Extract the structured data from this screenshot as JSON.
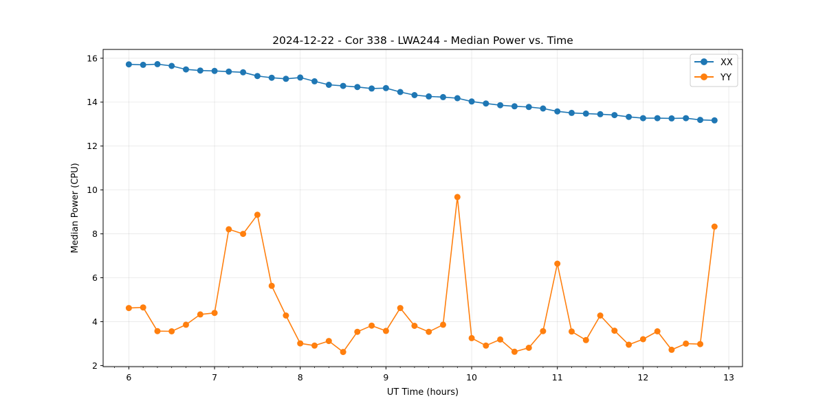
{
  "chart_data": {
    "type": "line",
    "title": "2024-12-22 - Cor 338 - LWA244 - Median Power vs. Time",
    "xlabel": "UT Time (hours)",
    "ylabel": "Median Power (CPU)",
    "xlim": [
      5.7,
      13.16
    ],
    "ylim": [
      1.95,
      16.4
    ],
    "xticks": [
      6,
      7,
      8,
      9,
      10,
      11,
      12,
      13
    ],
    "yticks": [
      2,
      4,
      6,
      8,
      10,
      12,
      14,
      16
    ],
    "grid": true,
    "legend_position": "top-right",
    "x": [
      6.0,
      6.1667,
      6.3333,
      6.5,
      6.6667,
      6.8333,
      7.0,
      7.1667,
      7.3333,
      7.5,
      7.6667,
      7.8333,
      8.0,
      8.1667,
      8.3333,
      8.5,
      8.6667,
      8.8333,
      9.0,
      9.1667,
      9.3333,
      9.5,
      9.6667,
      9.8333,
      10.0,
      10.1667,
      10.3333,
      10.5,
      10.6667,
      10.8333,
      11.0,
      11.1667,
      11.3333,
      11.5,
      11.6667,
      11.8333,
      12.0,
      12.1667,
      12.3333,
      12.5,
      12.6667,
      12.8333
    ],
    "series": [
      {
        "name": "XX",
        "color": "#1f77b4",
        "values": [
          15.72,
          15.7,
          15.73,
          15.65,
          15.49,
          15.44,
          15.42,
          15.39,
          15.36,
          15.19,
          15.11,
          15.06,
          15.12,
          14.95,
          14.79,
          14.74,
          14.69,
          14.62,
          14.64,
          14.46,
          14.32,
          14.26,
          14.23,
          14.18,
          14.03,
          13.94,
          13.86,
          13.81,
          13.78,
          13.71,
          13.58,
          13.51,
          13.48,
          13.45,
          13.41,
          13.33,
          13.27,
          13.27,
          13.26,
          13.27,
          13.19,
          13.17
        ]
      },
      {
        "name": "YY",
        "color": "#ff7f0e",
        "values": [
          4.62,
          4.65,
          3.57,
          3.56,
          3.86,
          4.33,
          4.4,
          8.21,
          8.0,
          8.87,
          5.63,
          4.28,
          3.01,
          2.91,
          3.12,
          2.62,
          3.54,
          3.82,
          3.58,
          4.62,
          3.81,
          3.54,
          3.86,
          9.68,
          3.25,
          2.91,
          3.19,
          2.63,
          2.81,
          3.57,
          6.64,
          3.55,
          3.16,
          4.28,
          3.59,
          2.95,
          3.2,
          3.56,
          2.72,
          3.0,
          2.98,
          8.33
        ]
      }
    ]
  }
}
